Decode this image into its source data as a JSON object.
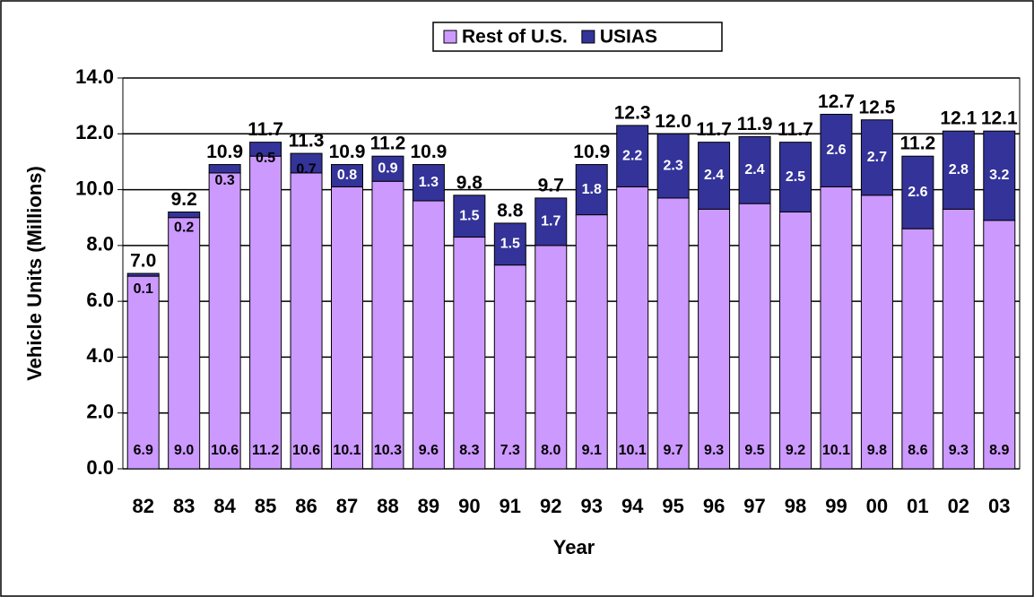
{
  "chart_data": {
    "type": "stacked_bar",
    "y_label": "Vehicle Units (Millions)",
    "x_label": "Year",
    "categories": [
      "82",
      "83",
      "84",
      "85",
      "86",
      "87",
      "88",
      "89",
      "90",
      "91",
      "92",
      "93",
      "94",
      "95",
      "96",
      "97",
      "98",
      "99",
      "00",
      "01",
      "02",
      "03"
    ],
    "series": [
      {
        "name": "Rest of U.S.",
        "color": "#cc99ff",
        "values": [
          6.9,
          9.0,
          10.6,
          11.2,
          10.6,
          10.1,
          10.3,
          9.6,
          8.3,
          7.3,
          8.0,
          9.1,
          10.1,
          9.7,
          9.3,
          9.5,
          9.2,
          10.1,
          9.8,
          8.6,
          9.3,
          8.9
        ],
        "value_labels": [
          "6.9",
          "9.0",
          "10.6",
          "11.2",
          "10.6",
          "10.1",
          "10.3",
          "9.6",
          "8.3",
          "7.3",
          "8.0",
          "9.1",
          "10.1",
          "9.7",
          "9.3",
          "9.5",
          "9.2",
          "10.1",
          "9.8",
          "8.6",
          "9.3",
          "8.9"
        ]
      },
      {
        "name": "USIAS",
        "color": "#333399",
        "values": [
          0.1,
          0.2,
          0.3,
          0.5,
          0.7,
          0.8,
          0.9,
          1.3,
          1.5,
          1.5,
          1.7,
          1.8,
          2.2,
          2.3,
          2.4,
          2.4,
          2.5,
          2.6,
          2.7,
          2.6,
          2.8,
          3.2
        ],
        "value_labels": [
          "0.1",
          "0.2",
          "0.3",
          "0.5",
          "0.7",
          "0.8",
          "0.9",
          "1.3",
          "1.5",
          "1.5",
          "1.7",
          "1.8",
          "2.2",
          "2.3",
          "2.4",
          "2.4",
          "2.5",
          "2.6",
          "2.7",
          "2.6",
          "2.8",
          "3.2"
        ]
      }
    ],
    "totals": [
      7.0,
      9.2,
      10.9,
      11.7,
      11.3,
      10.9,
      11.2,
      10.9,
      9.8,
      8.8,
      9.7,
      10.9,
      12.3,
      12.0,
      11.7,
      11.9,
      11.7,
      12.7,
      12.5,
      11.2,
      12.1,
      12.1
    ],
    "total_labels": [
      "7.0",
      "9.2",
      "10.9",
      "11.7",
      "11.3",
      "10.9",
      "11.2",
      "10.9",
      "9.8",
      "8.8",
      "9.7",
      "10.9",
      "12.3",
      "12.0",
      "11.7",
      "11.9",
      "11.7",
      "12.7",
      "12.5",
      "11.2",
      "12.1",
      "12.1"
    ],
    "ylim": [
      0,
      14
    ],
    "yticks": [
      {
        "value": 0,
        "label": "0.0"
      },
      {
        "value": 2,
        "label": "2.0"
      },
      {
        "value": 4,
        "label": "4.0"
      },
      {
        "value": 6,
        "label": "6.0"
      },
      {
        "value": 8,
        "label": "8.0"
      },
      {
        "value": 10,
        "label": "10.0"
      },
      {
        "value": 12,
        "label": "12.0"
      },
      {
        "value": 14,
        "label": "14.0"
      }
    ],
    "grid": true,
    "legend": "top"
  }
}
